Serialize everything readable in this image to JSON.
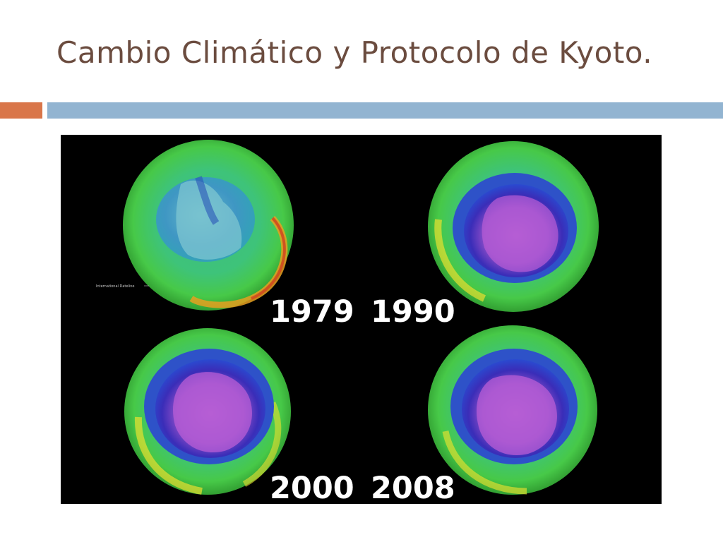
{
  "slide": {
    "title": "Cambio Climático y Protocolo de Kyoto."
  },
  "figure": {
    "panels": [
      {
        "year": "1979",
        "hole_size": "none"
      },
      {
        "year": "1990",
        "hole_size": "large"
      },
      {
        "year": "2000",
        "hole_size": "large"
      },
      {
        "year": "2008",
        "hole_size": "large"
      }
    ],
    "dateline_label": "International Dateline"
  },
  "colors": {
    "title": "#6b4c3f",
    "accent_orange": "#d9764a",
    "accent_blue": "#92b4d1",
    "background": "#ffffff",
    "figure_background": "#000000"
  }
}
